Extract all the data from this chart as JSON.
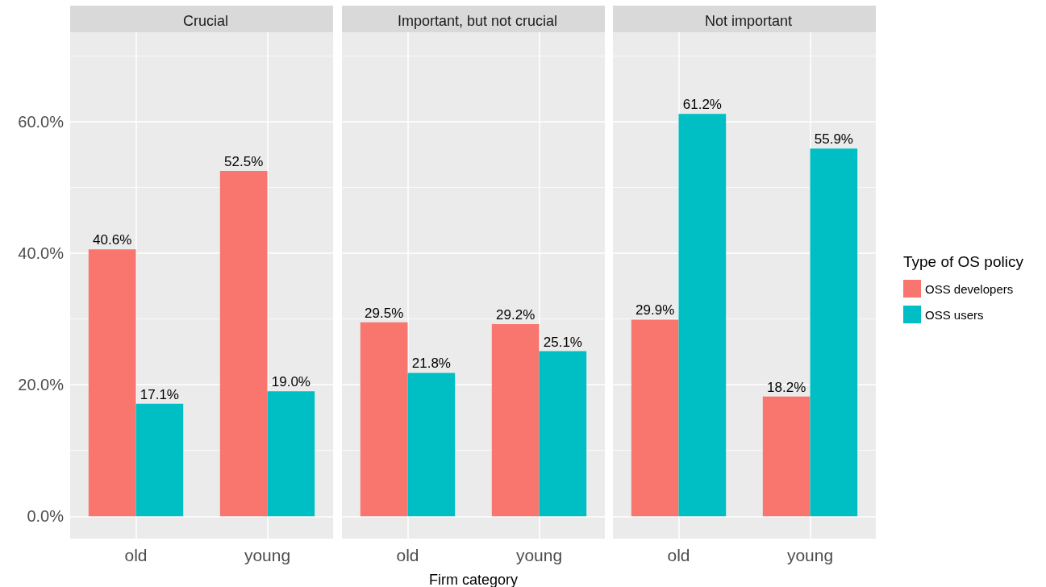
{
  "chart_data": [
    {
      "type": "bar",
      "title": "Crucial",
      "categories": [
        "old",
        "young"
      ],
      "ylim": [
        -3.4,
        73.6
      ],
      "yticks": [
        {
          "value": 0,
          "label": "0.0%"
        },
        {
          "value": 20,
          "label": "20.0%"
        },
        {
          "value": 40,
          "label": "40.0%"
        },
        {
          "value": 60,
          "label": "60.0%"
        }
      ],
      "grid": true,
      "legend": false,
      "series": [
        {
          "color": "#f8766d",
          "values": [
            40.6,
            52.5
          ],
          "value_labels": [
            "40.6%",
            "52.5%"
          ]
        },
        {
          "color": "#00bfc4",
          "values": [
            17.1,
            19.0
          ],
          "value_labels": [
            "17.1%",
            "19.0%"
          ]
        }
      ]
    },
    {
      "type": "bar",
      "title": "Important, but not crucial",
      "xlabel": "Firm category",
      "categories": [
        "old",
        "young"
      ],
      "ylim": [
        -3.4,
        73.6
      ],
      "yticks": [
        0,
        20,
        40,
        60
      ],
      "tick_labels": "x",
      "grid": true,
      "legend": false,
      "series": [
        {
          "color": "#f8766d",
          "values": [
            29.5,
            29.2
          ],
          "value_labels": [
            "29.5%",
            "29.2%"
          ]
        },
        {
          "color": "#00bfc4",
          "values": [
            21.8,
            25.1
          ],
          "value_labels": [
            "21.8%",
            "25.1%"
          ]
        }
      ]
    },
    {
      "type": "bar",
      "title": "Not important",
      "categories": [
        "old",
        "young"
      ],
      "ylim": [
        -3.4,
        73.6
      ],
      "yticks": [
        0,
        20,
        40,
        60
      ],
      "tick_labels": "x",
      "grid": true,
      "legend": "right",
      "legend_title": "Type of OS policy",
      "series": [
        {
          "name": "OSS developers",
          "color": "#f8766d",
          "values": [
            29.9,
            18.2
          ],
          "value_labels": [
            "29.9%",
            "18.2%"
          ]
        },
        {
          "name": "OSS users",
          "color": "#00bfc4",
          "values": [
            61.2,
            55.9
          ],
          "value_labels": [
            "61.2%",
            "55.9%"
          ]
        }
      ]
    }
  ]
}
